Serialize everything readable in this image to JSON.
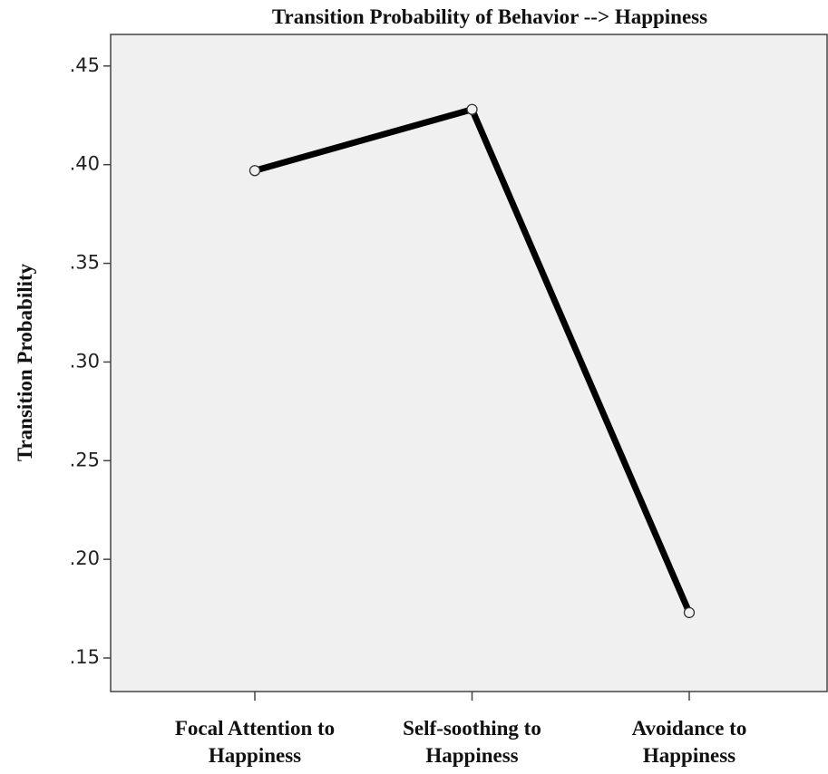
{
  "chart_data": {
    "type": "line",
    "title": "Transition Probability of Behavior --> Happiness",
    "y_label": "Transition Probability",
    "categories": [
      "Focal Attention to\nHappiness",
      "Self-soothing to\nHappiness",
      "Avoidance to\nHappiness"
    ],
    "series": [
      {
        "name": "Transition Probability",
        "color": "#000000",
        "values": [
          0.397,
          0.428,
          0.173
        ]
      }
    ],
    "ylim": [
      0.133,
      0.466
    ],
    "yticks": [
      {
        "value": 0.15,
        "label": ".15"
      },
      {
        "value": 0.2,
        "label": ".20"
      },
      {
        "value": 0.25,
        "label": ".25"
      },
      {
        "value": 0.3,
        "label": ".30"
      },
      {
        "value": 0.35,
        "label": ".35"
      },
      {
        "value": 0.4,
        "label": ".40"
      },
      {
        "value": 0.45,
        "label": ".45"
      }
    ]
  }
}
